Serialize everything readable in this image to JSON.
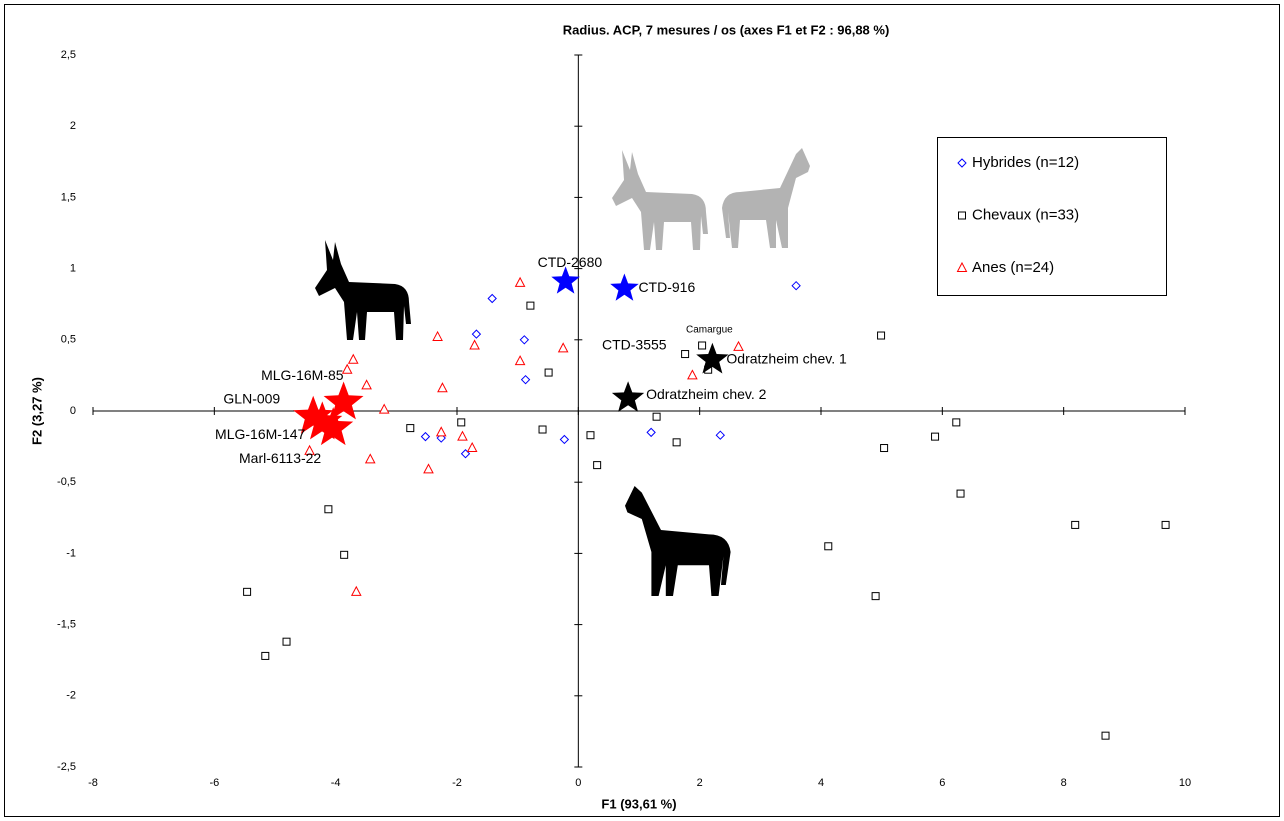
{
  "chart_data": {
    "type": "scatter",
    "title": "Radius. ACP, 7 mesures / os  (axes F1 et F2 : 96,88 %)",
    "xlabel": "F1 (93,61 %)",
    "ylabel": "F2 (3,27 %)",
    "xlim": [
      -8,
      10
    ],
    "ylim": [
      -2.5,
      2.5
    ],
    "xticks": [
      -8,
      -6,
      -4,
      -2,
      0,
      2,
      4,
      6,
      8,
      10
    ],
    "yticks": [
      {
        "value": -2.5,
        "label": "-2,5"
      },
      -2,
      {
        "value": -1.5,
        "label": "-1,5"
      },
      -1,
      {
        "value": -0.5,
        "label": "-0,5"
      },
      0,
      {
        "value": 0.5,
        "label": "0,5"
      },
      1,
      {
        "value": 1.5,
        "label": "1,5"
      },
      2,
      {
        "value": 2.5,
        "label": "2,5"
      }
    ],
    "grid": false,
    "legend": "upper right",
    "series": [
      {
        "name": "Hybrides (n=12)",
        "color": "#0000ff",
        "marker": "diamond",
        "x": [
          -1.42,
          -1.68,
          -0.89,
          -0.87,
          -2.52,
          -2.26,
          -1.86,
          -0.23,
          1.2,
          2.34,
          3.59
        ],
        "y": [
          0.79,
          0.54,
          0.5,
          0.22,
          -0.18,
          -0.19,
          -0.3,
          -0.2,
          -0.15,
          -0.17,
          0.88
        ]
      },
      {
        "name": "Chevaux (n=33)",
        "color": "#000000",
        "marker": "square",
        "x": [
          -0.79,
          -0.49,
          -0.59,
          -1.93,
          -2.77,
          0.2,
          0.31,
          1.29,
          1.62,
          1.76,
          2.04,
          2.14,
          4.99,
          5.04,
          5.88,
          6.23,
          6.3,
          8.19,
          9.68,
          8.69,
          4.12,
          4.9,
          -4.12,
          -3.86,
          -5.46,
          -4.81,
          -5.16
        ],
        "y": [
          0.74,
          0.27,
          -0.13,
          -0.08,
          -0.12,
          -0.17,
          -0.38,
          -0.04,
          -0.22,
          0.4,
          0.46,
          0.29,
          0.53,
          -0.26,
          -0.18,
          -0.08,
          -0.58,
          -0.8,
          -0.8,
          -2.28,
          -0.95,
          -1.3,
          -0.69,
          -1.01,
          -1.27,
          -1.62,
          -1.72
        ]
      },
      {
        "name": "Anes (n=24)",
        "color": "#ff0000",
        "marker": "triangle",
        "x": [
          -0.96,
          -1.71,
          -0.96,
          -0.25,
          -2.32,
          -2.24,
          -3.71,
          -3.81,
          -3.49,
          -3.2,
          -2.26,
          -1.91,
          -1.75,
          -3.43,
          -2.47,
          -4.43,
          -3.66,
          1.88,
          2.64
        ],
        "y": [
          0.9,
          0.46,
          0.35,
          0.44,
          0.52,
          0.16,
          0.36,
          0.29,
          0.18,
          0.01,
          -0.15,
          -0.18,
          -0.26,
          -0.34,
          -0.41,
          -0.28,
          -1.27,
          0.25,
          0.45
        ]
      }
    ],
    "highlights": [
      {
        "label": "CTD-2680",
        "color": "#0000ff",
        "x": -0.21,
        "y": 0.91
      },
      {
        "label": "CTD-916",
        "color": "#0000ff",
        "x": 0.76,
        "y": 0.86
      },
      {
        "label": "Odratzheim chev. 1",
        "color": "#000000",
        "x": 2.21,
        "y": 0.36
      },
      {
        "label": "Odratzheim chev. 2",
        "color": "#000000",
        "x": 0.82,
        "y": 0.09
      },
      {
        "label": "MLG-16M-85",
        "color": "#ff0000",
        "x": -3.87,
        "y": 0.06
      },
      {
        "label": "GLN-009",
        "color": "#ff0000",
        "x": -4.37,
        "y": -0.04
      },
      {
        "label": "MLG-16M-147",
        "color": "#ff0000",
        "x": -4.22,
        "y": -0.08
      },
      {
        "label": "Marl-6113-22",
        "color": "#ff0000",
        "x": -4.04,
        "y": -0.12
      }
    ],
    "annotations": [
      "CTD-3555",
      "Camargue"
    ]
  }
}
